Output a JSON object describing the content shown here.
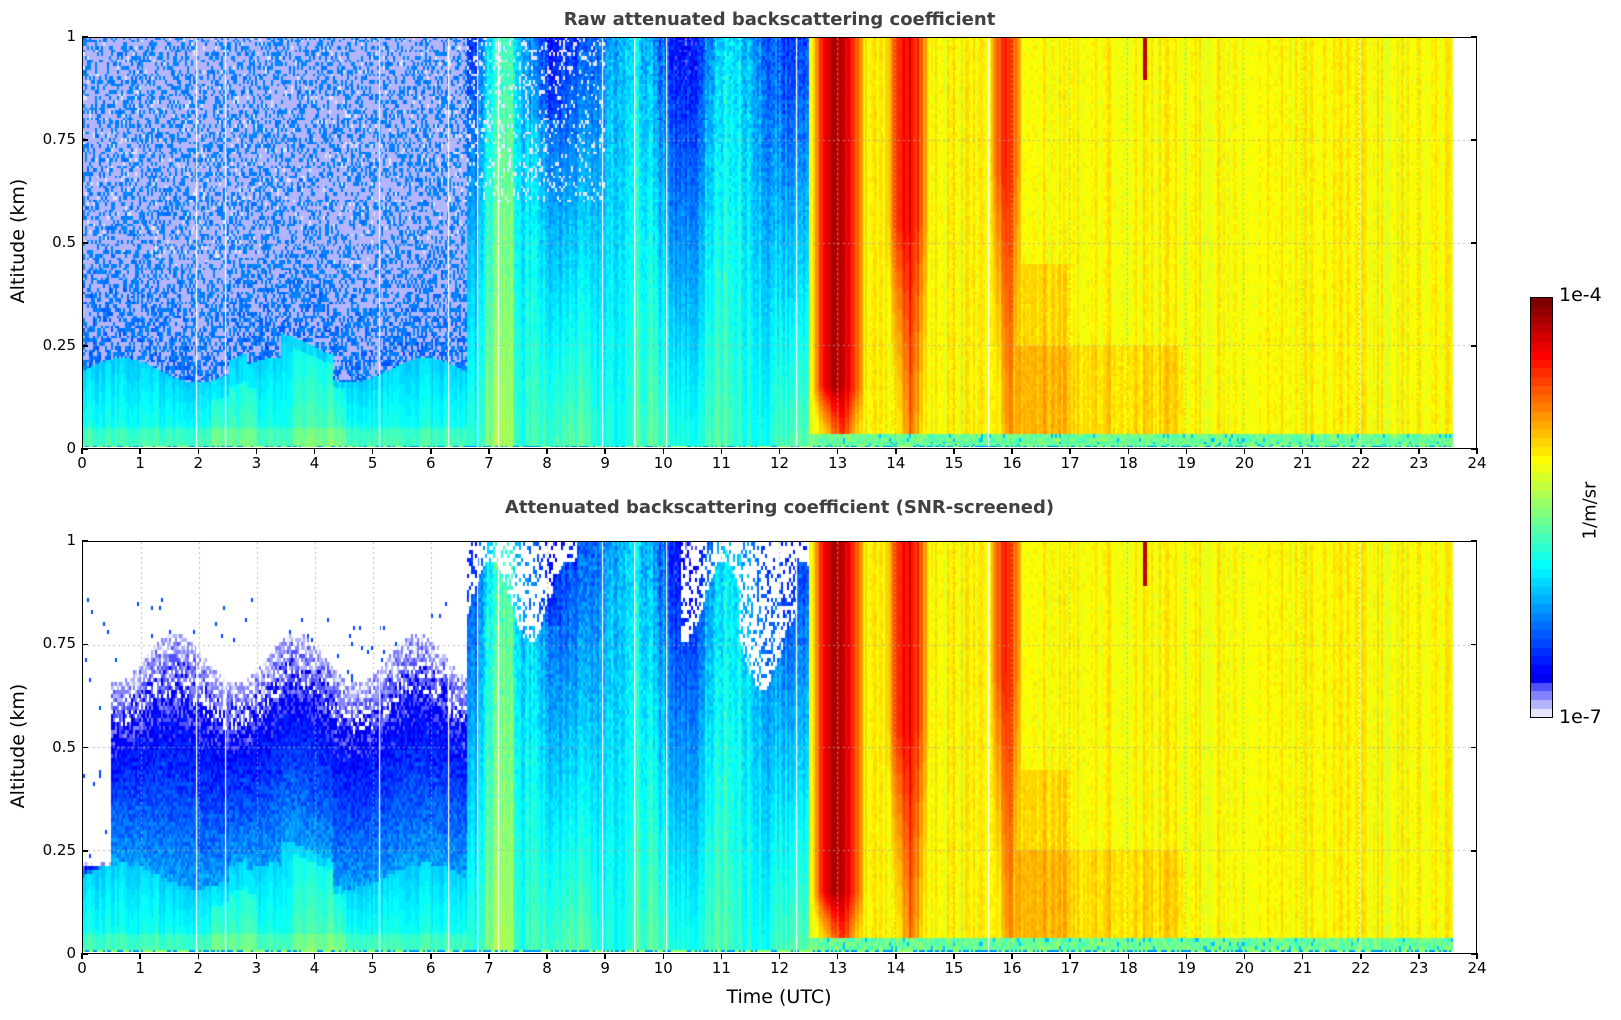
{
  "chart_data": [
    {
      "type": "heatmap",
      "title": "Raw attenuated backscattering coefficient",
      "xlabel": "",
      "ylabel": "Altitude (km)",
      "xlim": [
        0,
        24
      ],
      "ylim": [
        0,
        1
      ],
      "x_ticks": [
        "0",
        "1",
        "2",
        "3",
        "4",
        "5",
        "6",
        "7",
        "8",
        "9",
        "10",
        "11",
        "12",
        "13",
        "14",
        "15",
        "16",
        "17",
        "18",
        "19",
        "20",
        "21",
        "22",
        "23",
        "24"
      ],
      "y_ticks": [
        "0",
        "0.25",
        "0.5",
        "0.75",
        "1"
      ],
      "grid": true,
      "screened": false,
      "data_end_hour": 23.6,
      "gap_hours": [
        1.95,
        2.45,
        5.1,
        6.3,
        6.8,
        7.15,
        8.95,
        9.5,
        10.05,
        12.3,
        15.6,
        22.0
      ],
      "segments": [
        {
          "from": 0,
          "to": 6.6,
          "regime": "night_noise",
          "boundary_layer_top_km": 0.2,
          "log10_value_surface": -6.1
        },
        {
          "from": 6.6,
          "to": 12.5,
          "regime": "morning_growth",
          "log10_value_surface": -5.8,
          "log10_value_aloft": -6.4
        },
        {
          "from": 12.5,
          "to": 13.5,
          "regime": "dense_layer",
          "log10_value_peak": -4.2
        },
        {
          "from": 13.5,
          "to": 13.9,
          "regime": "mixed",
          "log10_value": -5.3
        },
        {
          "from": 13.9,
          "to": 14.6,
          "regime": "dense_layer",
          "log10_value_peak": -4.4
        },
        {
          "from": 14.6,
          "to": 15.6,
          "regime": "mixed",
          "log10_value": -5.2
        },
        {
          "from": 15.6,
          "to": 16.2,
          "regime": "dense_layer",
          "log10_value_peak": -4.5
        },
        {
          "from": 16.2,
          "to": 23.6,
          "regime": "mixed",
          "log10_value": -5.1
        }
      ],
      "thin_spike_hour": 18.3
    },
    {
      "type": "heatmap",
      "title": "Attenuated backscattering coefficient (SNR-screened)",
      "xlabel": "Time (UTC)",
      "ylabel": "Altitude (km)",
      "xlim": [
        0,
        24
      ],
      "ylim": [
        0,
        1
      ],
      "x_ticks": [
        "0",
        "1",
        "2",
        "3",
        "4",
        "5",
        "6",
        "7",
        "8",
        "9",
        "10",
        "11",
        "12",
        "13",
        "14",
        "15",
        "16",
        "17",
        "18",
        "19",
        "20",
        "21",
        "22",
        "23",
        "24"
      ],
      "y_ticks": [
        "0",
        "0.25",
        "0.5",
        "0.75",
        "1"
      ],
      "grid": true,
      "screened": true,
      "data_end_hour": 23.6,
      "gap_hours": [
        1.95,
        2.45,
        5.1,
        6.3,
        6.8,
        7.15,
        8.95,
        9.5,
        10.05,
        12.3,
        15.6,
        22.0
      ],
      "segments": [
        {
          "from": 0,
          "to": 0.45,
          "regime": "night_screened",
          "valid_top_km": 0.22
        },
        {
          "from": 0.45,
          "to": 6.6,
          "regime": "night_screened",
          "valid_top_km": 0.7
        },
        {
          "from": 6.6,
          "to": 12.5,
          "regime": "morning_growth",
          "valid_top_km": 0.9
        },
        {
          "from": 12.5,
          "to": 23.6,
          "regime": "same_as_raw"
        }
      ],
      "thin_spike_hour": 18.3
    }
  ],
  "colorbar": {
    "label": "1/m/sr",
    "max_label": "1e-4",
    "min_label": "1e-7",
    "log10_min": -7,
    "log10_max": -4,
    "colormap": "jet"
  }
}
